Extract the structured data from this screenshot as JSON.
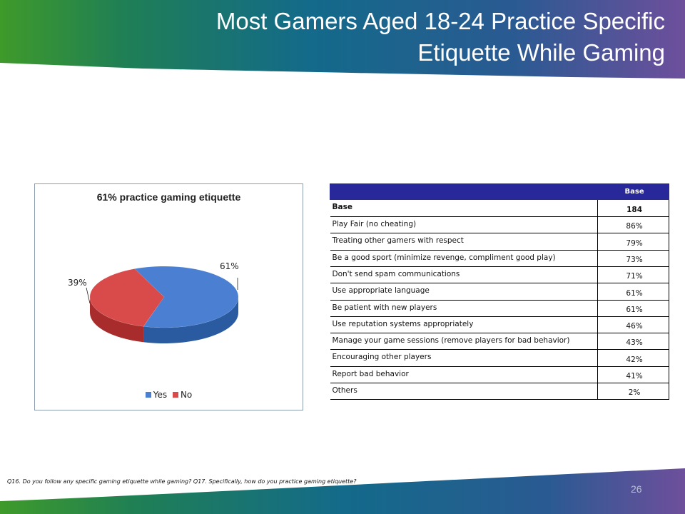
{
  "slide": {
    "title": "Most Gamers Aged 18-24 Practice Specific Etiquette While Gaming",
    "footnote": "Q16. Do you follow any specific gaming etiquette while gaming? Q17. Specifically, how do you practice gaming etiquette?",
    "page_number": "26"
  },
  "colors": {
    "header_green": "#2e8b2e",
    "header_teal": "#146e8c",
    "header_purple": "#6c4f9a",
    "table_header": "#28289b",
    "yes": "#4a7fd2",
    "no": "#d94b4b"
  },
  "chart_data": {
    "type": "pie",
    "title": "61% practice gaming etiquette",
    "categories": [
      "Yes",
      "No"
    ],
    "values": [
      61,
      39
    ],
    "data_labels": [
      "61%",
      "39%"
    ],
    "legend": "bottom",
    "style": "3d"
  },
  "table": {
    "column_header": "Base",
    "rows": [
      {
        "label": "Base",
        "value": "184"
      },
      {
        "label": "Play Fair (no cheating)",
        "value": "86%"
      },
      {
        "label": "Treating other gamers with respect",
        "value": "79%"
      },
      {
        "label": "Be a good sport (minimize revenge, compliment good play)",
        "value": "73%"
      },
      {
        "label": "Don't send spam communications",
        "value": "71%"
      },
      {
        "label": "Use appropriate language",
        "value": "61%"
      },
      {
        "label": "Be patient with new players",
        "value": "61%"
      },
      {
        "label": "Use reputation systems appropriately",
        "value": "46%"
      },
      {
        "label": "Manage your game sessions (remove players for bad behavior)",
        "value": "43%"
      },
      {
        "label": "Encouraging other players",
        "value": "42%"
      },
      {
        "label": "Report bad behavior",
        "value": "41%"
      },
      {
        "label": "Others",
        "value": "2%"
      }
    ]
  }
}
